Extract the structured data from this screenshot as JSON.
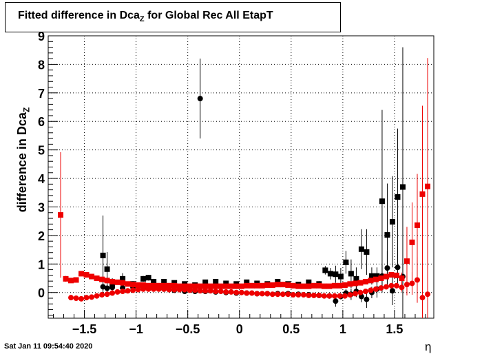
{
  "chart_data": {
    "type": "scatter",
    "title_main": "Fitted difference in Dca",
    "title_sub": "Z",
    "title_rest": " for Global Rec All EtapT",
    "ylabel_main": "difference in Dca",
    "ylabel_sub": "Z",
    "xlabel": "η",
    "xlim": [
      -1.85,
      1.88
    ],
    "ylim": [
      -0.9,
      9.0
    ],
    "xticks": [
      -1.5,
      -1,
      -0.5,
      0,
      0.5,
      1,
      1.5
    ],
    "xtick_labels": [
      "−1.5",
      "−1",
      "−0.5",
      "0",
      "0.5",
      "1",
      "1.5"
    ],
    "yticks": [
      0,
      1,
      2,
      3,
      4,
      5,
      6,
      7,
      8,
      9
    ],
    "ytick_labels": [
      "0",
      "1",
      "2",
      "3",
      "4",
      "5",
      "6",
      "7",
      "8",
      "9"
    ],
    "grid": true,
    "series": [
      {
        "color": "#000000",
        "marker": "square",
        "points": [
          [
            -1.32,
            1.3,
            1.4
          ],
          [
            -1.28,
            0.82,
            0.6
          ],
          [
            -1.23,
            0.3,
            0.2
          ],
          [
            -1.13,
            0.48,
            0.2
          ],
          [
            -1.03,
            0.3,
            0.1
          ],
          [
            -0.93,
            0.48,
            0.1
          ],
          [
            -0.88,
            0.52,
            0.1
          ],
          [
            -0.83,
            0.38,
            0.1
          ],
          [
            -0.73,
            0.38,
            0.08
          ],
          [
            -0.63,
            0.34,
            0.08
          ],
          [
            -0.53,
            0.3,
            0.08
          ],
          [
            -0.43,
            0.26,
            0.08
          ],
          [
            -0.33,
            0.36,
            0.08
          ],
          [
            -0.23,
            0.38,
            0.08
          ],
          [
            -0.13,
            0.32,
            0.08
          ],
          [
            -0.03,
            0.3,
            0.08
          ],
          [
            0.07,
            0.36,
            0.08
          ],
          [
            0.17,
            0.32,
            0.08
          ],
          [
            0.27,
            0.3,
            0.08
          ],
          [
            0.37,
            0.38,
            0.08
          ],
          [
            0.47,
            0.3,
            0.08
          ],
          [
            0.57,
            0.28,
            0.08
          ],
          [
            0.67,
            0.36,
            0.08
          ],
          [
            0.77,
            0.3,
            0.1
          ],
          [
            0.83,
            0.78,
            0.15
          ],
          [
            0.88,
            0.66,
            0.2
          ],
          [
            0.93,
            0.64,
            0.3
          ],
          [
            0.98,
            0.56,
            0.3
          ],
          [
            1.03,
            1.06,
            0.4
          ],
          [
            1.08,
            0.66,
            0.5
          ],
          [
            1.13,
            0.48,
            0.4
          ],
          [
            1.18,
            1.52,
            0.7
          ],
          [
            1.23,
            1.42,
            0.8
          ],
          [
            1.28,
            0.58,
            0.3
          ],
          [
            1.33,
            0.58,
            0.3
          ],
          [
            1.38,
            3.2,
            3.2
          ],
          [
            1.43,
            2.02,
            1.8
          ],
          [
            1.48,
            2.48,
            1.6
          ],
          [
            1.53,
            3.35,
            2.4
          ],
          [
            1.58,
            3.7,
            4.9
          ]
        ]
      },
      {
        "color": "#000000",
        "marker": "circle",
        "points": [
          [
            -1.32,
            0.2,
            0.15
          ],
          [
            -1.28,
            0.15,
            0.12
          ],
          [
            -1.23,
            0.18,
            0.1
          ],
          [
            -1.13,
            0.16,
            0.08
          ],
          [
            -1.03,
            0.18,
            0.06
          ],
          [
            -0.93,
            0.16,
            0.06
          ],
          [
            -0.83,
            0.14,
            0.06
          ],
          [
            -0.73,
            0.12,
            0.05
          ],
          [
            -0.63,
            0.08,
            0.05
          ],
          [
            -0.53,
            0.04,
            0.05
          ],
          [
            -0.43,
            0.04,
            0.05
          ],
          [
            -0.38,
            6.8,
            1.4
          ],
          [
            -0.33,
            0.04,
            0.05
          ],
          [
            -0.23,
            0.02,
            0.05
          ],
          [
            -0.13,
            0.0,
            0.05
          ],
          [
            -0.03,
            -0.02,
            0.05
          ],
          [
            0.07,
            -0.02,
            0.05
          ],
          [
            0.17,
            -0.04,
            0.05
          ],
          [
            0.27,
            -0.04,
            0.05
          ],
          [
            0.37,
            -0.04,
            0.05
          ],
          [
            0.47,
            -0.04,
            0.05
          ],
          [
            0.57,
            -0.06,
            0.05
          ],
          [
            0.67,
            -0.08,
            0.05
          ],
          [
            0.77,
            -0.1,
            0.06
          ],
          [
            0.87,
            -0.12,
            0.08
          ],
          [
            0.93,
            -0.3,
            0.2
          ],
          [
            0.98,
            -0.14,
            0.1
          ],
          [
            1.03,
            -0.02,
            0.15
          ],
          [
            1.08,
            -0.06,
            0.2
          ],
          [
            1.13,
            0.04,
            0.2
          ],
          [
            1.18,
            -0.14,
            0.2
          ],
          [
            1.23,
            -0.24,
            0.3
          ],
          [
            1.28,
            0.0,
            0.2
          ],
          [
            1.33,
            0.12,
            0.3
          ],
          [
            1.38,
            0.58,
            0.4
          ],
          [
            1.43,
            0.86,
            0.6
          ],
          [
            1.48,
            0.06,
            0.5
          ],
          [
            1.53,
            0.88,
            0.7
          ],
          [
            1.58,
            0.56,
            0.6
          ]
        ]
      },
      {
        "color": "#ee0000",
        "marker": "square",
        "points": [
          [
            -1.73,
            2.72,
            2.2
          ],
          [
            -1.68,
            0.48,
            0.1
          ],
          [
            -1.63,
            0.42,
            0.08
          ],
          [
            -1.58,
            0.44,
            0.08
          ],
          [
            -1.53,
            0.66,
            0.08
          ],
          [
            -1.48,
            0.62,
            0.06
          ],
          [
            -1.43,
            0.56,
            0.06
          ],
          [
            -1.38,
            0.5,
            0.05
          ],
          [
            -1.33,
            0.46,
            0.05
          ],
          [
            -1.28,
            0.42,
            0.05
          ],
          [
            -1.23,
            0.38,
            0.05
          ],
          [
            -1.18,
            0.36,
            0.05
          ],
          [
            -1.13,
            0.34,
            0.05
          ],
          [
            -1.08,
            0.3,
            0.05
          ],
          [
            -1.03,
            0.28,
            0.05
          ],
          [
            -0.98,
            0.26,
            0.05
          ],
          [
            -0.93,
            0.26,
            0.05
          ],
          [
            -0.88,
            0.24,
            0.05
          ],
          [
            -0.83,
            0.24,
            0.05
          ],
          [
            -0.78,
            0.24,
            0.05
          ],
          [
            -0.73,
            0.24,
            0.05
          ],
          [
            -0.68,
            0.24,
            0.05
          ],
          [
            -0.63,
            0.24,
            0.05
          ],
          [
            -0.58,
            0.22,
            0.05
          ],
          [
            -0.53,
            0.22,
            0.05
          ],
          [
            -0.48,
            0.22,
            0.05
          ],
          [
            -0.43,
            0.22,
            0.05
          ],
          [
            -0.38,
            0.22,
            0.05
          ],
          [
            -0.33,
            0.22,
            0.05
          ],
          [
            -0.28,
            0.22,
            0.05
          ],
          [
            -0.23,
            0.22,
            0.05
          ],
          [
            -0.18,
            0.22,
            0.05
          ],
          [
            -0.13,
            0.22,
            0.05
          ],
          [
            -0.08,
            0.22,
            0.05
          ],
          [
            -0.03,
            0.22,
            0.05
          ],
          [
            0.02,
            0.22,
            0.05
          ],
          [
            0.07,
            0.24,
            0.05
          ],
          [
            0.12,
            0.24,
            0.05
          ],
          [
            0.17,
            0.24,
            0.05
          ],
          [
            0.22,
            0.24,
            0.05
          ],
          [
            0.27,
            0.26,
            0.05
          ],
          [
            0.32,
            0.26,
            0.05
          ],
          [
            0.37,
            0.28,
            0.05
          ],
          [
            0.42,
            0.28,
            0.05
          ],
          [
            0.47,
            0.26,
            0.05
          ],
          [
            0.52,
            0.24,
            0.05
          ],
          [
            0.57,
            0.22,
            0.05
          ],
          [
            0.62,
            0.22,
            0.05
          ],
          [
            0.67,
            0.22,
            0.05
          ],
          [
            0.72,
            0.24,
            0.05
          ],
          [
            0.77,
            0.24,
            0.05
          ],
          [
            0.82,
            0.22,
            0.05
          ],
          [
            0.87,
            0.22,
            0.05
          ],
          [
            0.92,
            0.24,
            0.05
          ],
          [
            0.97,
            0.24,
            0.05
          ],
          [
            1.02,
            0.26,
            0.05
          ],
          [
            1.07,
            0.3,
            0.06
          ],
          [
            1.12,
            0.32,
            0.06
          ],
          [
            1.17,
            0.34,
            0.06
          ],
          [
            1.22,
            0.38,
            0.06
          ],
          [
            1.27,
            0.42,
            0.06
          ],
          [
            1.32,
            0.46,
            0.06
          ],
          [
            1.37,
            0.5,
            0.06
          ],
          [
            1.42,
            0.56,
            0.06
          ],
          [
            1.47,
            0.62,
            0.06
          ],
          [
            1.52,
            0.6,
            0.1
          ],
          [
            1.57,
            0.5,
            0.2
          ],
          [
            1.62,
            1.1,
            1.2
          ],
          [
            1.67,
            1.76,
            1.4
          ],
          [
            1.72,
            2.36,
            1.8
          ],
          [
            1.77,
            3.45,
            3.1
          ],
          [
            1.82,
            3.72,
            4.5
          ]
        ]
      },
      {
        "color": "#ee0000",
        "marker": "circle",
        "points": [
          [
            -1.63,
            -0.18,
            0.05
          ],
          [
            -1.58,
            -0.2,
            0.05
          ],
          [
            -1.53,
            -0.22,
            0.05
          ],
          [
            -1.48,
            -0.18,
            0.05
          ],
          [
            -1.43,
            -0.16,
            0.05
          ],
          [
            -1.38,
            -0.12,
            0.05
          ],
          [
            -1.33,
            -0.08,
            0.05
          ],
          [
            -1.28,
            -0.06,
            0.05
          ],
          [
            -1.23,
            -0.02,
            0.05
          ],
          [
            -1.18,
            0.02,
            0.05
          ],
          [
            -1.13,
            0.04,
            0.05
          ],
          [
            -1.08,
            0.06,
            0.05
          ],
          [
            -1.03,
            0.08,
            0.05
          ],
          [
            -0.98,
            0.1,
            0.05
          ],
          [
            -0.93,
            0.12,
            0.05
          ],
          [
            -0.88,
            0.12,
            0.05
          ],
          [
            -0.83,
            0.12,
            0.05
          ],
          [
            -0.78,
            0.12,
            0.05
          ],
          [
            -0.73,
            0.12,
            0.05
          ],
          [
            -0.68,
            0.1,
            0.05
          ],
          [
            -0.63,
            0.1,
            0.05
          ],
          [
            -0.58,
            0.1,
            0.05
          ],
          [
            -0.53,
            0.1,
            0.05
          ],
          [
            -0.48,
            0.08,
            0.05
          ],
          [
            -0.43,
            0.08,
            0.05
          ],
          [
            -0.38,
            0.06,
            0.05
          ],
          [
            -0.33,
            0.06,
            0.05
          ],
          [
            -0.28,
            0.06,
            0.05
          ],
          [
            -0.23,
            0.04,
            0.05
          ],
          [
            -0.18,
            0.04,
            0.05
          ],
          [
            -0.13,
            0.02,
            0.05
          ],
          [
            -0.08,
            0.02,
            0.05
          ],
          [
            -0.03,
            0.0,
            0.05
          ],
          [
            0.02,
            0.0,
            0.05
          ],
          [
            0.07,
            -0.02,
            0.05
          ],
          [
            0.12,
            -0.02,
            0.05
          ],
          [
            0.17,
            -0.04,
            0.05
          ],
          [
            0.22,
            -0.04,
            0.05
          ],
          [
            0.27,
            -0.04,
            0.05
          ],
          [
            0.32,
            -0.06,
            0.05
          ],
          [
            0.37,
            -0.06,
            0.05
          ],
          [
            0.42,
            -0.06,
            0.05
          ],
          [
            0.47,
            -0.06,
            0.05
          ],
          [
            0.52,
            -0.08,
            0.05
          ],
          [
            0.57,
            -0.08,
            0.05
          ],
          [
            0.62,
            -0.08,
            0.05
          ],
          [
            0.67,
            -0.1,
            0.05
          ],
          [
            0.72,
            -0.1,
            0.05
          ],
          [
            0.77,
            -0.1,
            0.05
          ],
          [
            0.82,
            -0.12,
            0.05
          ],
          [
            0.87,
            -0.12,
            0.05
          ],
          [
            0.92,
            -0.12,
            0.05
          ],
          [
            0.97,
            -0.12,
            0.05
          ],
          [
            1.02,
            -0.12,
            0.05
          ],
          [
            1.07,
            -0.08,
            0.05
          ],
          [
            1.12,
            -0.04,
            0.05
          ],
          [
            1.17,
            0.0,
            0.05
          ],
          [
            1.22,
            0.04,
            0.05
          ],
          [
            1.27,
            0.08,
            0.05
          ],
          [
            1.32,
            0.12,
            0.05
          ],
          [
            1.37,
            0.16,
            0.06
          ],
          [
            1.42,
            0.2,
            0.06
          ],
          [
            1.47,
            0.24,
            0.06
          ],
          [
            1.52,
            0.24,
            0.1
          ],
          [
            1.57,
            0.18,
            0.15
          ],
          [
            1.62,
            0.28,
            0.3
          ],
          [
            1.67,
            0.32,
            0.4
          ],
          [
            1.72,
            0.44,
            0.8
          ],
          [
            1.77,
            -0.18,
            0.8
          ],
          [
            1.82,
            -0.06,
            1.2
          ]
        ]
      }
    ]
  },
  "footer": {
    "date": "Sat Jan 11 09:54:40 2020"
  }
}
